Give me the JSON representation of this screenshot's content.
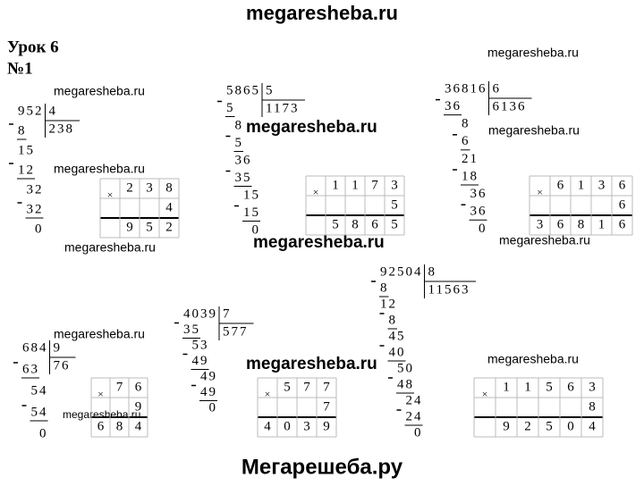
{
  "header": {
    "site": "megaresheba.ru"
  },
  "lesson": "Урок 6",
  "task": "№1",
  "divisions": [
    {
      "dividend": "952",
      "divisor": "4",
      "quotient": "238",
      "steps": [
        "8",
        "15",
        "12",
        "32",
        "32",
        "0"
      ],
      "check": {
        "rows": [
          [
            "×",
            "2",
            "3",
            "8"
          ],
          [
            null,
            null,
            null,
            "4"
          ],
          [
            null,
            "9",
            "5",
            "2"
          ]
        ]
      }
    },
    {
      "dividend": "5865",
      "divisor": "5",
      "quotient": "1173",
      "steps": [
        "5",
        "8",
        "5",
        "36",
        "35",
        "15",
        "15",
        "0"
      ],
      "check": {
        "rows": [
          [
            "×",
            "1",
            "1",
            "7",
            "3"
          ],
          [
            null,
            null,
            null,
            null,
            "5"
          ],
          [
            null,
            "5",
            "8",
            "6",
            "5"
          ]
        ]
      }
    },
    {
      "dividend": "36816",
      "divisor": "6",
      "quotient": "6136",
      "steps": [
        "36",
        "8",
        "6",
        "21",
        "18",
        "36",
        "36",
        "0"
      ],
      "check": {
        "rows": [
          [
            "×",
            "6",
            "1",
            "3",
            "6"
          ],
          [
            null,
            null,
            null,
            null,
            "6"
          ],
          [
            "3",
            "6",
            "8",
            "1",
            "6"
          ]
        ]
      }
    },
    {
      "dividend": "684",
      "divisor": "9",
      "quotient": "76",
      "steps": [
        "63",
        "54",
        "54",
        "0"
      ],
      "check": {
        "rows": [
          [
            "×",
            "7",
            "6"
          ],
          [
            null,
            null,
            "9"
          ],
          [
            "6",
            "8",
            "4"
          ]
        ]
      }
    },
    {
      "dividend": "4039",
      "divisor": "7",
      "quotient": "577",
      "steps": [
        "35",
        "53",
        "49",
        "49",
        "49",
        "0"
      ],
      "check": {
        "rows": [
          [
            "×",
            "5",
            "7",
            "7"
          ],
          [
            null,
            null,
            null,
            "7"
          ],
          [
            "4",
            "0",
            "3",
            "9"
          ]
        ]
      }
    },
    {
      "dividend": "92504",
      "divisor": "8",
      "quotient": "11563",
      "steps": [
        "8",
        "12",
        "8",
        "45",
        "40",
        "50",
        "48",
        "24",
        "24",
        "0"
      ],
      "check": {
        "rows": [
          [
            "×",
            "1",
            "1",
            "5",
            "6",
            "3"
          ],
          [
            null,
            null,
            null,
            null,
            null,
            "8"
          ],
          [
            null,
            "9",
            "2",
            "5",
            "0",
            "4"
          ]
        ]
      }
    }
  ],
  "watermarks": [
    "megaresheba.ru",
    "megaresheba.ru",
    "megaresheba.ru",
    "megaresheba.ru",
    "megaresheba.ru",
    "megaresheba.ru",
    "megaresheba.ru",
    "megaresheba.ru",
    "megaresheba.ru",
    "megaresheba.ru",
    "megaresheba.ru",
    "megaresheba.ru"
  ],
  "footer": "Мегарешеба.ру"
}
